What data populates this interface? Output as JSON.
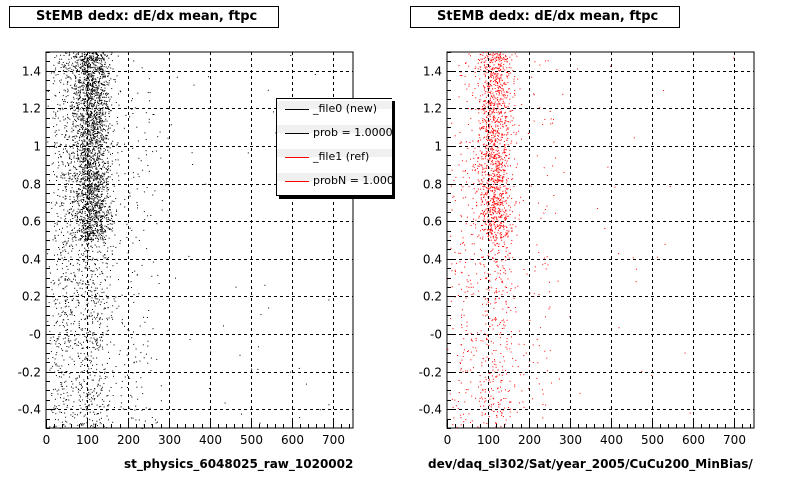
{
  "titles": {
    "left": "StEMB dedx: dE/dx mean, ftpc",
    "right": "StEMB dedx: dE/dx mean, ftpc"
  },
  "xlabels": {
    "left": "st_physics_6048025_raw_1020002",
    "right": "dev/daq_sl302/Sat/year_2005/CuCu200_MinBias/"
  },
  "legend": {
    "entries": [
      {
        "label": "_file0 (new)",
        "color": "#000000"
      },
      {
        "label": "prob = 1.000000",
        "color": "#000000"
      },
      {
        "label": "_file1 (ref)",
        "color": "#ff0000"
      },
      {
        "label": "probN = 1.000000",
        "color": "#ff0000"
      }
    ]
  },
  "footer_text": "",
  "chart_data": [
    {
      "type": "scatter",
      "title": "StEMB dedx: dE/dx mean, ftpc",
      "xlabel": "st_physics_6048025_raw_1020002",
      "ylabel": "",
      "xlim": [
        0,
        750
      ],
      "ylim": [
        -0.5,
        1.5
      ],
      "xticks": [
        0,
        100,
        200,
        300,
        400,
        500,
        600,
        700
      ],
      "yticks": [
        -0.4,
        -0.2,
        0,
        0.2,
        0.4,
        0.6,
        0.8,
        1,
        1.2,
        1.4
      ],
      "ytick_labels": [
        "-0.4",
        "-0.2",
        "-0",
        "0.2",
        "0.4",
        "0.6",
        "0.8",
        "1",
        "1.2",
        "1.4"
      ],
      "grid": true,
      "series": [
        {
          "name": "_file0 (new)",
          "color": "#000000",
          "clusters": [
            {
              "x_center": 110,
              "x_spread": 45,
              "y_min": 0.5,
              "y_max": 1.5,
              "count": 2600
            },
            {
              "x_center": 110,
              "x_spread": 55,
              "y_min": -0.5,
              "y_max": 0.5,
              "count": 600
            },
            {
              "x_center": 40,
              "x_spread": 30,
              "y_min": -0.5,
              "y_max": 1.5,
              "count": 500
            },
            {
              "x_center": 230,
              "x_spread": 60,
              "y_min": -0.5,
              "y_max": 1.5,
              "count": 160
            },
            {
              "x_center": 450,
              "x_spread": 250,
              "y_min": -0.5,
              "y_max": 1.5,
              "count": 45
            }
          ]
        }
      ]
    },
    {
      "type": "scatter",
      "title": "StEMB dedx: dE/dx mean, ftpc",
      "xlabel": "dev/daq_sl302/Sat/year_2005/CuCu200_MinBias/",
      "ylabel": "",
      "xlim": [
        0,
        750
      ],
      "ylim": [
        -0.5,
        1.5
      ],
      "xticks": [
        0,
        100,
        200,
        300,
        400,
        500,
        600,
        700
      ],
      "yticks": [
        -0.4,
        -0.2,
        0,
        0.2,
        0.4,
        0.6,
        0.8,
        1,
        1.2,
        1.4
      ],
      "ytick_labels": [
        "-0.4",
        "-0.2",
        "-0",
        "0.2",
        "0.4",
        "0.6",
        "0.8",
        "1",
        "1.2",
        "1.4"
      ],
      "grid": true,
      "series": [
        {
          "name": "_file1 (ref)",
          "color": "#ff0000",
          "clusters": [
            {
              "x_center": 115,
              "x_spread": 40,
              "y_min": 0.5,
              "y_max": 1.5,
              "count": 1400
            },
            {
              "x_center": 115,
              "x_spread": 50,
              "y_min": -0.5,
              "y_max": 0.5,
              "count": 350
            },
            {
              "x_center": 40,
              "x_spread": 30,
              "y_min": -0.5,
              "y_max": 1.5,
              "count": 180
            },
            {
              "x_center": 230,
              "x_spread": 60,
              "y_min": -0.5,
              "y_max": 1.5,
              "count": 90
            },
            {
              "x_center": 450,
              "x_spread": 250,
              "y_min": -0.5,
              "y_max": 1.5,
              "count": 25
            }
          ]
        }
      ]
    }
  ]
}
